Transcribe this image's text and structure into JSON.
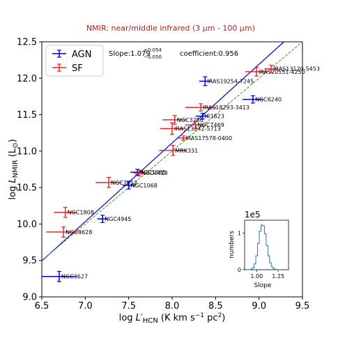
{
  "chart_data": {
    "type": "scatter",
    "title": "NMIR: near/middle infrared (3 μm - 100 μm)",
    "xlabel": "log L′HCN (K km s⁻¹ pc²)",
    "ylabel": "log LNMIR (L⊙)",
    "xlim": [
      6.5,
      9.5
    ],
    "ylim": [
      9.0,
      12.5
    ],
    "xticks": [
      "6.5",
      "7.0",
      "7.5",
      "8.0",
      "8.5",
      "9.0",
      "9.5"
    ],
    "yticks": [
      "9.0",
      "9.5",
      "10.0",
      "10.5",
      "11.0",
      "11.5",
      "12.0",
      "12.5"
    ],
    "grid": false,
    "legend_position": "top-left",
    "colors": {
      "AGN": "#0000cc",
      "SF": "#e8262a",
      "fit": "#0000cc",
      "onetoone": "#2ca02c",
      "title": "#b22222",
      "inset": "#1f77b4"
    },
    "annotation": {
      "slope": "Slope:1.079",
      "slope_plus": "+0.054",
      "slope_minus": "−0.050",
      "coefficient": "coefficient:0.956"
    },
    "fit_line": {
      "slope": 1.079,
      "intercept": 2.48
    },
    "onetoone_line": {
      "slope": 1.0,
      "intercept": 3.0
    },
    "series": [
      {
        "name": "AGN",
        "points": [
          {
            "label": "IRAS19254-7245",
            "x": 8.38,
            "y": 11.96,
            "xerr": 0.07,
            "yerr": 0.06
          },
          {
            "label": "NGC6240",
            "x": 8.93,
            "y": 11.71,
            "xerr": 0.12,
            "yerr": 0.05
          },
          {
            "label": "IC1623",
            "x": 8.35,
            "y": 11.48,
            "xerr": 0.08,
            "yerr": 0.04
          },
          {
            "label": "NGC1365",
            "x": 7.6,
            "y": 10.71,
            "xerr": 0.08,
            "yerr": 0.04
          },
          {
            "label": "NGC1068",
            "x": 7.5,
            "y": 10.53,
            "xerr": 0.07,
            "yerr": 0.05
          },
          {
            "label": "NGC4945",
            "x": 7.2,
            "y": 10.07,
            "xerr": 0.06,
            "yerr": 0.05
          },
          {
            "label": "NGC3627",
            "x": 6.7,
            "y": 9.28,
            "xerr": 0.2,
            "yerr": 0.07
          }
        ]
      },
      {
        "name": "SF",
        "points": [
          {
            "label": "IRAS20551-4250",
            "x": 8.97,
            "y": 12.09,
            "xerr": 0.13,
            "yerr": 0.06
          },
          {
            "label": "IRAS13120-5453",
            "x": 9.14,
            "y": 12.13,
            "xerr": 0.08,
            "yerr": 0.05
          },
          {
            "label": "IRAS18293-3413",
            "x": 8.33,
            "y": 11.6,
            "xerr": 0.18,
            "yerr": 0.05
          },
          {
            "label": "NGC3256",
            "x": 8.03,
            "y": 11.43,
            "xerr": 0.14,
            "yerr": 0.06
          },
          {
            "label": "NGC7469",
            "x": 8.27,
            "y": 11.36,
            "xerr": 0.12,
            "yerr": 0.05
          },
          {
            "label": "IRAS13242-5713",
            "x": 8.0,
            "y": 11.31,
            "xerr": 0.14,
            "yerr": 0.08
          },
          {
            "label": "IRAS17578-0400",
            "x": 8.13,
            "y": 11.18,
            "xerr": 0.06,
            "yerr": 0.03
          },
          {
            "label": "MRK331",
            "x": 8.01,
            "y": 11.01,
            "xerr": 0.16,
            "yerr": 0.07
          },
          {
            "label": "NGC4418",
            "x": 7.62,
            "y": 10.7,
            "xerr": 0.06,
            "yerr": 0.04
          },
          {
            "label": "NGC7552",
            "x": 7.27,
            "y": 10.57,
            "xerr": 0.15,
            "yerr": 0.07
          },
          {
            "label": "NGC1808",
            "x": 6.77,
            "y": 10.16,
            "xerr": 0.13,
            "yerr": 0.07
          },
          {
            "label": "NGC3628",
            "x": 6.75,
            "y": 9.89,
            "xerr": 0.2,
            "yerr": 0.07
          }
        ]
      }
    ],
    "inset": {
      "type": "histogram",
      "multiplier": "1e5",
      "xlabel": "Slope",
      "ylabel": "numbers",
      "xlim": [
        0.86,
        1.37
      ],
      "ylim": [
        0,
        1.35
      ],
      "xticks": [
        "1.00",
        "1.25"
      ],
      "yticks": [
        "0",
        "1"
      ],
      "bins": [
        {
          "x": 0.9,
          "y": 0.0
        },
        {
          "x": 0.92,
          "y": 0.004
        },
        {
          "x": 0.94,
          "y": 0.015
        },
        {
          "x": 0.96,
          "y": 0.05
        },
        {
          "x": 0.98,
          "y": 0.16
        },
        {
          "x": 1.0,
          "y": 0.38
        },
        {
          "x": 1.02,
          "y": 0.72
        },
        {
          "x": 1.04,
          "y": 1.05
        },
        {
          "x": 1.06,
          "y": 1.22
        },
        {
          "x": 1.08,
          "y": 1.2
        },
        {
          "x": 1.1,
          "y": 0.98
        },
        {
          "x": 1.12,
          "y": 0.66
        },
        {
          "x": 1.14,
          "y": 0.38
        },
        {
          "x": 1.16,
          "y": 0.19
        },
        {
          "x": 1.18,
          "y": 0.08
        },
        {
          "x": 1.2,
          "y": 0.03
        },
        {
          "x": 1.22,
          "y": 0.01
        },
        {
          "x": 1.24,
          "y": 0.003
        },
        {
          "x": 1.26,
          "y": 0.0
        }
      ]
    }
  }
}
